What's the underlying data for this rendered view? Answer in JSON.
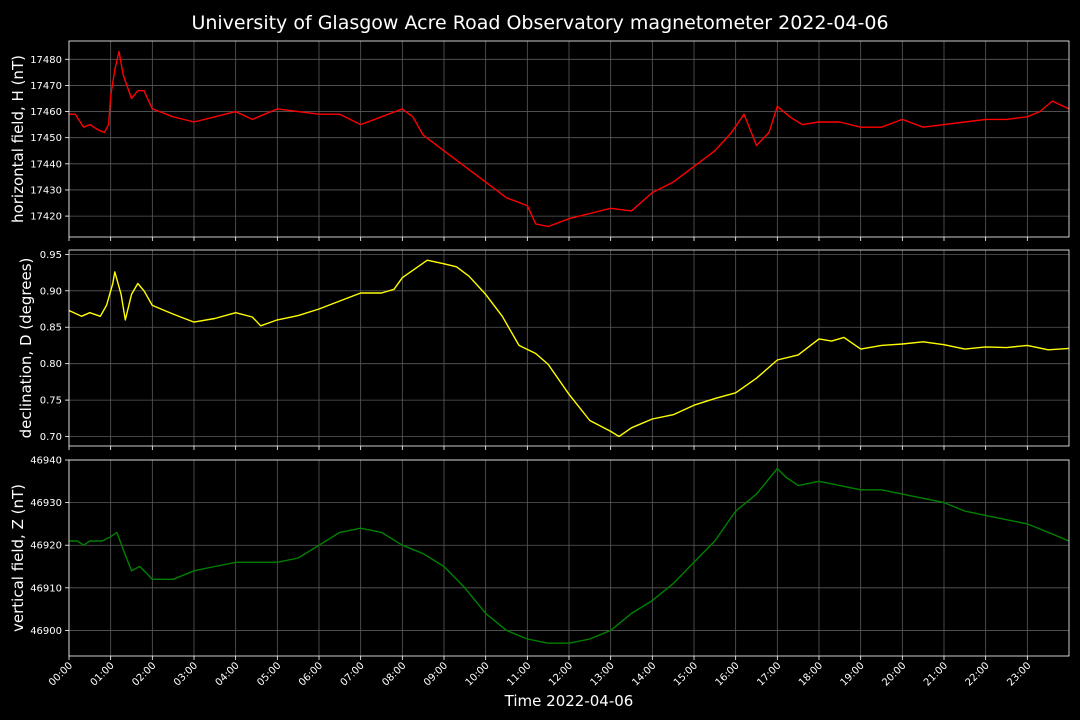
{
  "colors": {
    "background": "#000000",
    "text": "#ffffff",
    "grid": "#5a5a5a",
    "frame": "#ffffff"
  },
  "chart_data": {
    "title": "University of Glasgow Acre Road Observatory magnetometer 2022-04-06",
    "xlabel": "Time 2022-04-06",
    "x_ticks": [
      "00:00",
      "01:00",
      "02:00",
      "03:00",
      "04:00",
      "05:00",
      "06:00",
      "07:00",
      "08:00",
      "09:00",
      "10:00",
      "11:00",
      "12:00",
      "13:00",
      "14:00",
      "15:00",
      "16:00",
      "17:00",
      "18:00",
      "19:00",
      "20:00",
      "21:00",
      "22:00",
      "23:00"
    ],
    "xlim_hours": [
      0,
      24
    ],
    "grid": true,
    "panels": [
      {
        "type": "line",
        "ylabel": "horizontal field, H (nT)",
        "color": "#ff0000",
        "ylim": [
          17412,
          17487
        ],
        "yticks": [
          17420,
          17430,
          17440,
          17450,
          17460,
          17470,
          17480
        ],
        "tick_labels": [
          "17420",
          "17430",
          "17440",
          "17450",
          "17460",
          "17470",
          "17480"
        ],
        "x": [
          0.0,
          0.15,
          0.35,
          0.5,
          0.7,
          0.85,
          0.95,
          1.0,
          1.1,
          1.2,
          1.3,
          1.5,
          1.65,
          1.8,
          2.0,
          2.5,
          3.0,
          3.5,
          4.0,
          4.4,
          5.0,
          5.5,
          6.0,
          6.5,
          7.0,
          7.5,
          8.0,
          8.25,
          8.5,
          9.0,
          9.5,
          10.0,
          10.5,
          11.0,
          11.2,
          11.5,
          12.0,
          12.5,
          13.0,
          13.5,
          14.0,
          14.5,
          15.0,
          15.5,
          15.9,
          16.2,
          16.5,
          16.8,
          17.0,
          17.3,
          17.6,
          18.0,
          18.5,
          19.0,
          19.5,
          20.0,
          20.5,
          21.0,
          21.5,
          22.0,
          22.5,
          23.0,
          23.3,
          23.6,
          24.0
        ],
        "values": [
          17459,
          17459,
          17454,
          17455,
          17453,
          17452,
          17455,
          17466,
          17476,
          17483,
          17474,
          17465,
          17468,
          17468,
          17461,
          17458,
          17456,
          17458,
          17460,
          17457,
          17461,
          17460,
          17459,
          17459,
          17455,
          17458,
          17461,
          17458,
          17451,
          17445,
          17439,
          17433,
          17427,
          17424,
          17417,
          17416,
          17419,
          17421,
          17423,
          17422,
          17429,
          17433,
          17439,
          17445,
          17452,
          17459,
          17447,
          17452,
          17462,
          17458,
          17455,
          17456,
          17456,
          17454,
          17454,
          17457,
          17454,
          17455,
          17456,
          17457,
          17457,
          17458,
          17460,
          17464,
          17461
        ]
      },
      {
        "type": "line",
        "ylabel": "declination, D (degrees)",
        "color": "#ffff00",
        "ylim": [
          0.687,
          0.956
        ],
        "yticks": [
          0.7,
          0.75,
          0.8,
          0.85,
          0.9,
          0.95
        ],
        "tick_labels": [
          "0.70",
          "0.75",
          "0.80",
          "0.85",
          "0.90",
          "0.95"
        ],
        "x": [
          0.0,
          0.3,
          0.5,
          0.75,
          0.9,
          1.05,
          1.1,
          1.25,
          1.35,
          1.5,
          1.65,
          1.8,
          2.0,
          2.5,
          3.0,
          3.5,
          4.0,
          4.4,
          4.6,
          5.0,
          5.5,
          6.0,
          6.5,
          7.0,
          7.5,
          7.8,
          8.0,
          8.3,
          8.6,
          9.0,
          9.3,
          9.6,
          10.0,
          10.4,
          10.8,
          11.2,
          11.5,
          12.0,
          12.5,
          13.0,
          13.2,
          13.5,
          14.0,
          14.5,
          15.0,
          15.5,
          16.0,
          16.5,
          17.0,
          17.5,
          18.0,
          18.3,
          18.6,
          19.0,
          19.5,
          20.0,
          20.5,
          21.0,
          21.5,
          22.0,
          22.5,
          23.0,
          23.5,
          24.0
        ],
        "values": [
          0.873,
          0.865,
          0.87,
          0.865,
          0.88,
          0.91,
          0.926,
          0.895,
          0.86,
          0.895,
          0.91,
          0.9,
          0.88,
          0.868,
          0.857,
          0.862,
          0.87,
          0.864,
          0.852,
          0.86,
          0.866,
          0.875,
          0.886,
          0.897,
          0.897,
          0.902,
          0.918,
          0.93,
          0.942,
          0.937,
          0.933,
          0.92,
          0.895,
          0.865,
          0.825,
          0.814,
          0.799,
          0.758,
          0.722,
          0.707,
          0.7,
          0.712,
          0.724,
          0.73,
          0.743,
          0.752,
          0.76,
          0.78,
          0.805,
          0.812,
          0.834,
          0.831,
          0.836,
          0.82,
          0.825,
          0.827,
          0.83,
          0.826,
          0.82,
          0.823,
          0.822,
          0.825,
          0.819,
          0.821
        ]
      },
      {
        "type": "line",
        "ylabel": "vertical field, Z (nT)",
        "color": "#008000",
        "ylim": [
          46894,
          46940
        ],
        "yticks": [
          46900,
          46910,
          46920,
          46930,
          46940
        ],
        "tick_labels": [
          "46900",
          "46910",
          "46920",
          "46930",
          "46940"
        ],
        "x": [
          0.0,
          0.2,
          0.35,
          0.5,
          0.8,
          1.0,
          1.15,
          1.3,
          1.5,
          1.7,
          1.9,
          2.0,
          2.5,
          3.0,
          3.5,
          4.0,
          4.5,
          5.0,
          5.5,
          6.0,
          6.5,
          7.0,
          7.5,
          8.0,
          8.5,
          9.0,
          9.5,
          10.0,
          10.5,
          11.0,
          11.5,
          12.0,
          12.5,
          13.0,
          13.5,
          14.0,
          14.5,
          15.0,
          15.5,
          16.0,
          16.5,
          17.0,
          17.2,
          17.5,
          18.0,
          18.5,
          19.0,
          19.5,
          20.0,
          20.5,
          21.0,
          21.5,
          22.0,
          22.5,
          23.0,
          23.5,
          24.0
        ],
        "values": [
          46921,
          46921,
          46920,
          46921,
          46921,
          46922,
          46923,
          46919,
          46914,
          46915,
          46913,
          46912,
          46912,
          46914,
          46915,
          46916,
          46916,
          46916,
          46917,
          46920,
          46923,
          46924,
          46923,
          46920,
          46918,
          46915,
          46910,
          46904,
          46900,
          46898,
          46897,
          46897,
          46898,
          46900,
          46904,
          46907,
          46911,
          46916,
          46921,
          46928,
          46932,
          46938,
          46936,
          46934,
          46935,
          46934,
          46933,
          46933,
          46932,
          46931,
          46930,
          46928,
          46927,
          46926,
          46925,
          46923,
          46921
        ]
      }
    ]
  }
}
